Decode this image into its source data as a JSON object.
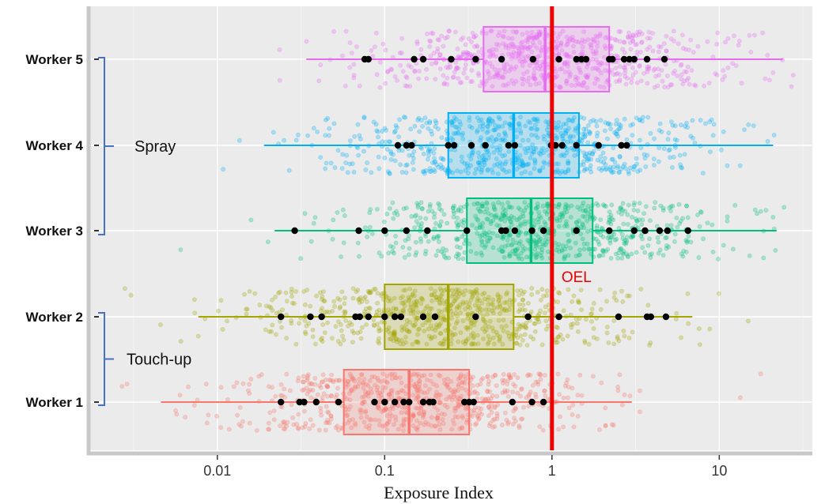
{
  "chart_data": {
    "type": "box",
    "xlabel": "Exposure Index",
    "x_scale": "log",
    "x_ticks": [
      {
        "value": 0.01,
        "label": "0.01"
      },
      {
        "value": 0.1,
        "label": "0.1"
      },
      {
        "value": 1,
        "label": "1"
      },
      {
        "value": 10,
        "label": "10"
      }
    ],
    "xlim": [
      0.0017,
      36
    ],
    "grid": true,
    "categories": [
      "Worker 5",
      "Worker 4",
      "Worker 3",
      "Worker 2",
      "Worker 1"
    ],
    "series": [
      {
        "label": "Worker 5",
        "color": "#e76bf3",
        "min": 0.034,
        "q1": 0.39,
        "median": 0.91,
        "q3": 2.2,
        "max": 24.0,
        "observations": [
          0.076,
          0.08,
          0.15,
          0.17,
          0.25,
          0.35,
          0.5,
          0.77,
          1.1,
          1.4,
          1.5,
          1.6,
          2.2,
          2.3,
          2.7,
          2.9,
          3.1,
          3.7,
          4.7
        ]
      },
      {
        "label": "Worker 4",
        "color": "#00b0f6",
        "min": 0.019,
        "q1": 0.24,
        "median": 0.59,
        "q3": 1.45,
        "max": 21.0,
        "observations": [
          0.12,
          0.135,
          0.145,
          0.24,
          0.26,
          0.33,
          0.4,
          0.55,
          0.6,
          0.99,
          1.05,
          1.15,
          1.4,
          1.9,
          2.6,
          2.8
        ]
      },
      {
        "label": "Worker 3",
        "color": "#00bf7d",
        "min": 0.022,
        "q1": 0.31,
        "median": 0.75,
        "q3": 1.75,
        "max": 22.0,
        "observations": [
          0.029,
          0.07,
          0.1,
          0.135,
          0.18,
          0.31,
          0.5,
          0.53,
          0.6,
          0.76,
          0.89,
          1.4,
          2.2,
          3.1,
          3.6,
          4.4,
          4.9,
          6.5
        ]
      },
      {
        "label": "Worker 2",
        "color": "#a3a500",
        "min": 0.0077,
        "q1": 0.1,
        "median": 0.24,
        "q3": 0.59,
        "max": 6.9,
        "observations": [
          0.024,
          0.036,
          0.042,
          0.067,
          0.071,
          0.08,
          0.1,
          0.115,
          0.125,
          0.17,
          0.2,
          0.35,
          0.72,
          1.1,
          2.5,
          3.7,
          3.9,
          4.8
        ]
      },
      {
        "label": "Worker 1",
        "color": "#f8766d",
        "min": 0.0046,
        "q1": 0.057,
        "median": 0.14,
        "q3": 0.32,
        "max": 3.0,
        "observations": [
          0.024,
          0.031,
          0.033,
          0.039,
          0.053,
          0.087,
          0.1,
          0.115,
          0.13,
          0.14,
          0.17,
          0.185,
          0.195,
          0.3,
          0.32,
          0.34,
          0.58,
          0.76,
          0.89
        ]
      }
    ],
    "reference_line": {
      "value": 1,
      "label": "OEL",
      "color": "#ee0000"
    },
    "groups": [
      {
        "label": "Spray",
        "members": [
          "Worker 5",
          "Worker 4",
          "Worker 3"
        ]
      },
      {
        "label": "Touch-up",
        "members": [
          "Worker 2",
          "Worker 1"
        ]
      }
    ]
  }
}
